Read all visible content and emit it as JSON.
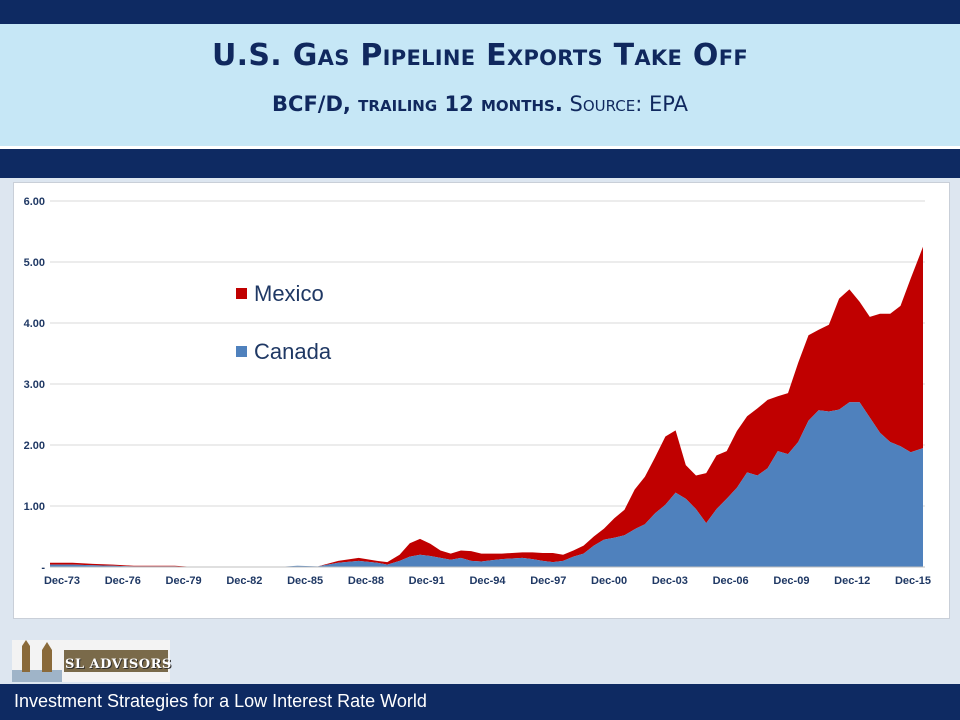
{
  "header": {
    "title": "U.S. Gas Pipeline Exports Take Off",
    "subtitle_bold": "BCF/D, trailing 12 months.",
    "subtitle_source": "Source:  EPA"
  },
  "footer": {
    "tagline": "Investment Strategies for a Low Interest Rate World"
  },
  "logo": {
    "text": "SL ADVISORS"
  },
  "colors": {
    "mexico": "#c00000",
    "canada": "#4f81bd",
    "navy": "#0e2a62",
    "title_band": "#c6e7f6"
  },
  "chart_data": {
    "type": "area",
    "stacked": true,
    "title": "",
    "xlabel": "",
    "ylabel": "",
    "ylim": [
      0,
      6
    ],
    "yticks": [
      0,
      1,
      2,
      3,
      4,
      5,
      6
    ],
    "ytick_labels": [
      "-",
      "1.00",
      "2.00",
      "3.00",
      "4.00",
      "5.00",
      "6.00"
    ],
    "xlim": [
      1973.9,
      2016.7
    ],
    "xtick_labels": [
      "Dec-73",
      "Dec-76",
      "Dec-79",
      "Dec-82",
      "Dec-85",
      "Dec-88",
      "Dec-91",
      "Dec-94",
      "Dec-97",
      "Dec-00",
      "Dec-03",
      "Dec-06",
      "Dec-09",
      "Dec-12",
      "Dec-15"
    ],
    "legend_position": "upper-left",
    "grid": "horizontal",
    "x": [
      1973.9,
      1975,
      1976,
      1977,
      1978,
      1979,
      1980,
      1981,
      1982,
      1983,
      1984,
      1985,
      1986,
      1987,
      1988,
      1989,
      1989.9,
      1990.4,
      1991,
      1991.5,
      1992,
      1992.5,
      1993,
      1993.5,
      1994,
      1994.5,
      1995,
      1995.5,
      1996,
      1996.5,
      1997,
      1997.5,
      1998,
      1998.5,
      1999,
      1999.5,
      2000,
      2000.5,
      2001,
      2001.5,
      2002,
      2002.5,
      2003,
      2003.5,
      2004,
      2004.5,
      2005,
      2005.5,
      2006,
      2006.5,
      2007,
      2007.5,
      2008,
      2008.5,
      2009,
      2009.5,
      2010,
      2010.5,
      2011,
      2011.5,
      2012,
      2012.5,
      2013,
      2013.5,
      2014,
      2014.5,
      2015,
      2015.5,
      2016,
      2016.6
    ],
    "series": [
      {
        "name": "Canada",
        "values": [
          0.04,
          0.04,
          0.03,
          0.02,
          0.01,
          0.01,
          0.01,
          0.0,
          0.0,
          0.0,
          0.0,
          0.0,
          0.02,
          0.01,
          0.07,
          0.1,
          0.07,
          0.04,
          0.1,
          0.17,
          0.2,
          0.18,
          0.15,
          0.12,
          0.15,
          0.1,
          0.09,
          0.11,
          0.13,
          0.14,
          0.15,
          0.13,
          0.1,
          0.08,
          0.1,
          0.17,
          0.22,
          0.35,
          0.45,
          0.48,
          0.52,
          0.62,
          0.7,
          0.88,
          1.02,
          1.22,
          1.12,
          0.95,
          0.72,
          0.95,
          1.12,
          1.3,
          1.55,
          1.5,
          1.62,
          1.9,
          1.85,
          2.05,
          2.4,
          2.57,
          2.55,
          2.58,
          2.7,
          2.7,
          2.45,
          2.2,
          2.05,
          1.98,
          1.88,
          1.95
        ]
      },
      {
        "name": "Mexico",
        "values": [
          0.03,
          0.03,
          0.02,
          0.02,
          0.01,
          0.01,
          0.01,
          0.0,
          0.0,
          0.0,
          0.0,
          0.0,
          0.0,
          0.0,
          0.03,
          0.05,
          0.03,
          0.04,
          0.1,
          0.22,
          0.26,
          0.2,
          0.12,
          0.1,
          0.12,
          0.16,
          0.13,
          0.11,
          0.09,
          0.09,
          0.09,
          0.11,
          0.13,
          0.15,
          0.1,
          0.1,
          0.13,
          0.15,
          0.18,
          0.32,
          0.42,
          0.65,
          0.78,
          0.92,
          1.12,
          1.02,
          0.55,
          0.55,
          0.82,
          0.88,
          0.78,
          0.93,
          0.92,
          1.1,
          1.12,
          0.9,
          1.0,
          1.3,
          1.4,
          1.32,
          1.42,
          1.82,
          1.85,
          1.65,
          1.65,
          1.95,
          2.1,
          2.3,
          2.85,
          3.3
        ]
      }
    ]
  }
}
